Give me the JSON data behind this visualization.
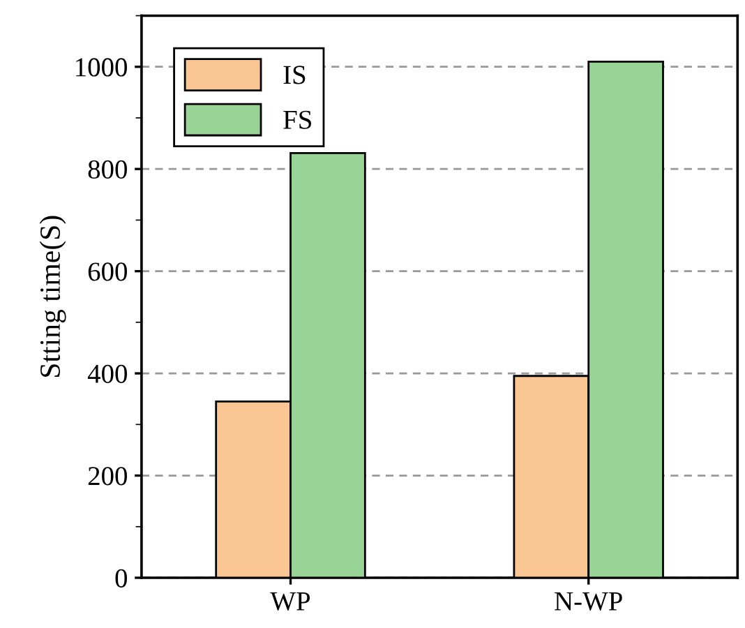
{
  "chart_data": {
    "type": "bar",
    "ylabel": "Stting time(S)",
    "categories": [
      "WP",
      "N-WP"
    ],
    "series": [
      {
        "name": "IS",
        "color": "#f9c593",
        "values": [
          345,
          395
        ]
      },
      {
        "name": "FS",
        "color": "#98d495",
        "values": [
          831,
          1010
        ]
      }
    ],
    "ylim": [
      0,
      1100
    ],
    "yticks": [
      0,
      200,
      400,
      600,
      800,
      1000
    ],
    "grid": "y",
    "legend": "top left"
  }
}
